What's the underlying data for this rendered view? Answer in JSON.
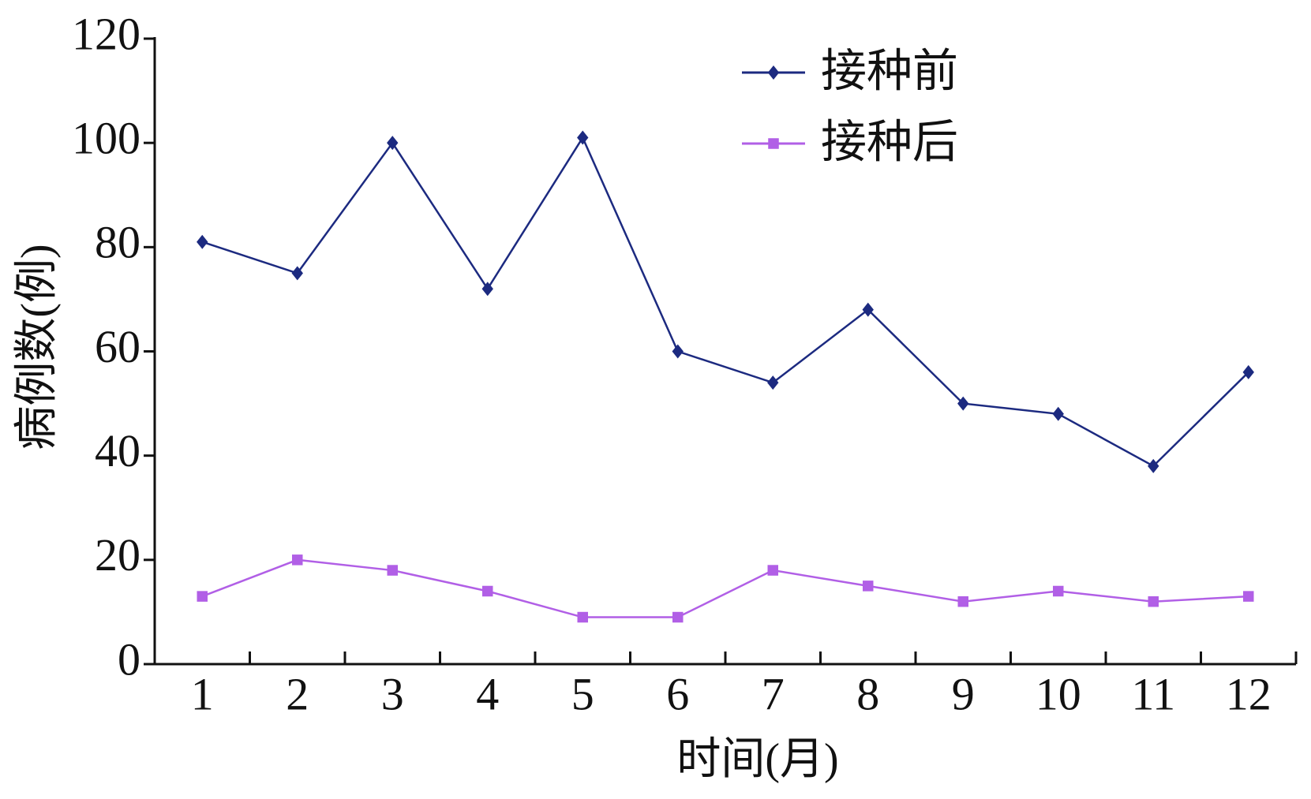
{
  "chart_data": {
    "type": "line",
    "x_label": "时间(月)",
    "y_label": "病例数(例)",
    "categories": [
      "1",
      "2",
      "3",
      "4",
      "5",
      "6",
      "7",
      "8",
      "9",
      "10",
      "11",
      "12"
    ],
    "series": [
      {
        "name": "接种前",
        "color": "#1c2a80",
        "marker": "diamond",
        "values": [
          81,
          75,
          100,
          72,
          101,
          60,
          54,
          68,
          50,
          48,
          38,
          56
        ]
      },
      {
        "name": "接种后",
        "color": "#b15fe6",
        "marker": "square",
        "values": [
          13,
          20,
          18,
          14,
          9,
          9,
          18,
          15,
          12,
          14,
          12,
          13
        ]
      }
    ],
    "ylim": [
      0,
      120
    ],
    "yticks": [
      0,
      20,
      40,
      60,
      80,
      100,
      120
    ],
    "grid": false,
    "legend": "top-right"
  }
}
